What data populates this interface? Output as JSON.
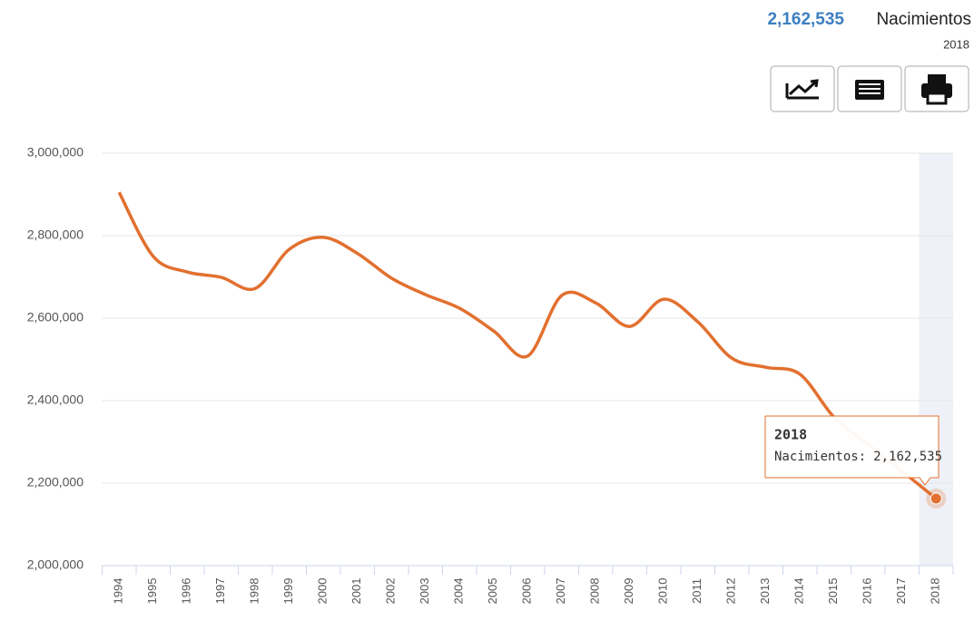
{
  "chart_data": {
    "type": "line",
    "categories": [
      "1994",
      "1995",
      "1996",
      "1997",
      "1998",
      "1999",
      "2000",
      "2001",
      "2002",
      "2003",
      "2004",
      "2005",
      "2006",
      "2007",
      "2008",
      "2009",
      "2010",
      "2011",
      "2012",
      "2013",
      "2014",
      "2015",
      "2016",
      "2017",
      "2018"
    ],
    "series": [
      {
        "name": "Nacimientos",
        "color": "#e2702f",
        "values": [
          2905000,
          2750000,
          2712000,
          2699000,
          2672000,
          2767000,
          2796000,
          2757000,
          2697000,
          2657000,
          2624000,
          2569000,
          2508000,
          2655000,
          2637000,
          2580000,
          2646000,
          2591000,
          2503000,
          2481000,
          2464000,
          2360000,
          2294000,
          2229000,
          2162535
        ],
        "value_labels": [
          null,
          null,
          null,
          null,
          null,
          null,
          null,
          null,
          null,
          null,
          null,
          null,
          null,
          null,
          null,
          null,
          null,
          null,
          null,
          null,
          null,
          null,
          null,
          null,
          "2,162,535"
        ]
      }
    ],
    "tooltip_label": "Nacimientos:",
    "ylim": [
      2000000,
      3000000
    ],
    "yticks": [
      {
        "value": 2000000,
        "label": "2,000,000"
      },
      {
        "value": 2200000,
        "label": "2,200,000"
      },
      {
        "value": 2400000,
        "label": "2,400,000"
      },
      {
        "value": 2600000,
        "label": "2,600,000"
      },
      {
        "value": 2800000,
        "label": "2,800,000"
      },
      {
        "value": 3000000,
        "label": "3,000,000"
      }
    ],
    "grid": true
  }
}
